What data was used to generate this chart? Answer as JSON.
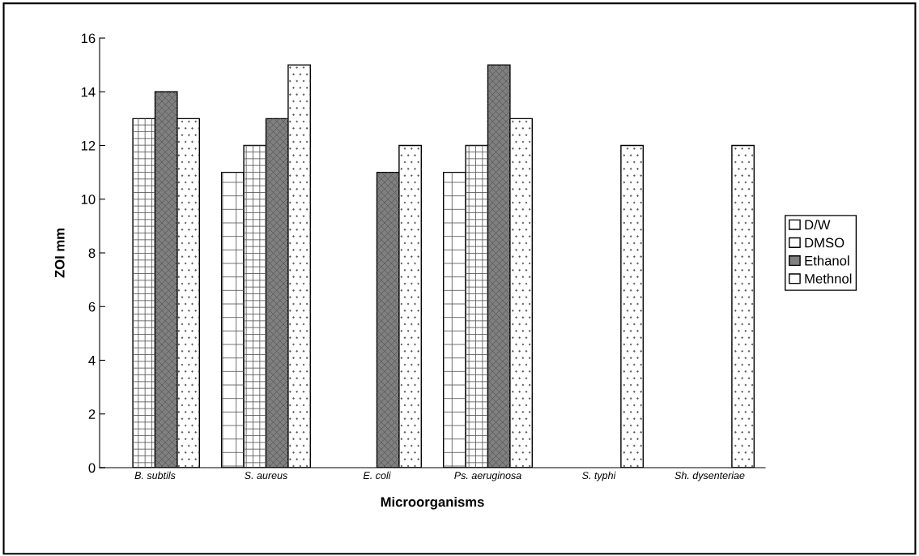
{
  "chart_data": {
    "type": "bar",
    "xlabel": "Microorganisms",
    "ylabel": "ZOI mm",
    "categories": [
      "B. subtils",
      "S. aureus",
      "E. coli",
      "Ps. aeruginosa",
      "S. typhi",
      "Sh. dysenteriae"
    ],
    "series": [
      {
        "name": "D/W",
        "color": "#ffffff",
        "values": [
          null,
          11,
          null,
          11,
          null,
          null
        ]
      },
      {
        "name": "DMSO",
        "color": "#ffffff",
        "values": [
          13,
          12,
          null,
          12,
          null,
          null
        ]
      },
      {
        "name": "Ethanol",
        "color": "#808080",
        "values": [
          14,
          13,
          11,
          15,
          null,
          null
        ]
      },
      {
        "name": "Methnol",
        "color": "#ffffff",
        "values": [
          13,
          15,
          12,
          13,
          12,
          12
        ]
      }
    ],
    "ylim": [
      0,
      16
    ],
    "yticks": [
      0,
      2,
      4,
      6,
      8,
      10,
      12,
      14,
      16
    ],
    "grid": false,
    "legend": "right"
  }
}
